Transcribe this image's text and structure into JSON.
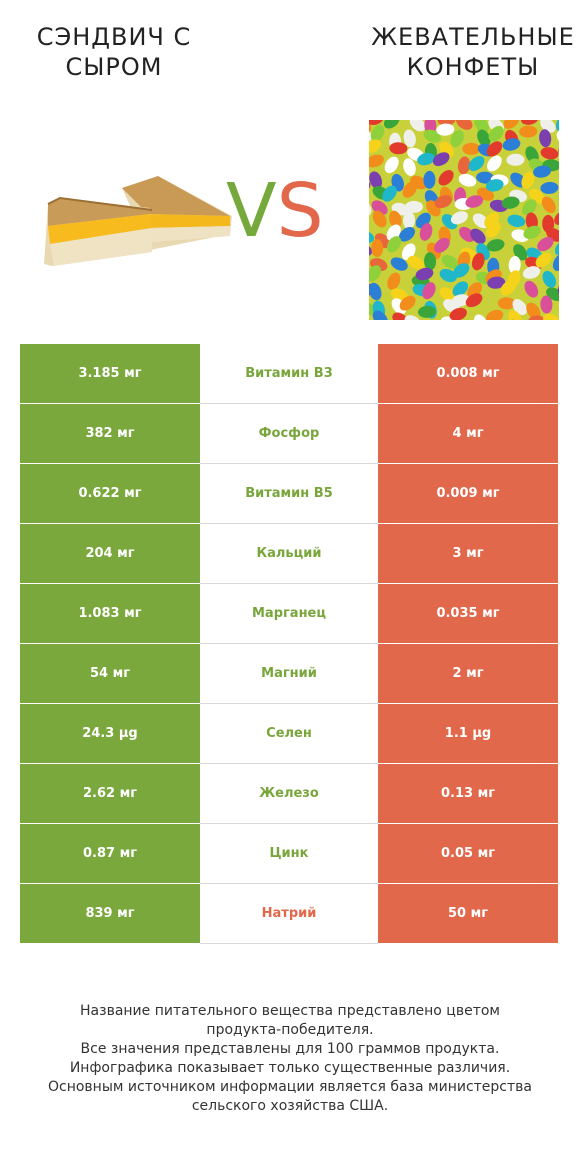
{
  "header": {
    "left_title_line1": "СЭНДВИЧ С",
    "left_title_line2": "СЫРОМ",
    "right_title_line1": "ЖЕВАТЕЛЬНЫЕ",
    "right_title_line2": "КОНФЕТЫ",
    "vs_v": "V",
    "vs_s": "S"
  },
  "colors": {
    "left_winner": "#7aa83d",
    "right_winner": "#e2684b"
  },
  "rows": [
    {
      "left": "3.185 мг",
      "nutrient": "Витамин B3",
      "right": "0.008 мг",
      "winner": "left"
    },
    {
      "left": "382 мг",
      "nutrient": "Фосфор",
      "right": "4 мг",
      "winner": "left"
    },
    {
      "left": "0.622 мг",
      "nutrient": "Витамин B5",
      "right": "0.009 мг",
      "winner": "left"
    },
    {
      "left": "204 мг",
      "nutrient": "Кальций",
      "right": "3 мг",
      "winner": "left"
    },
    {
      "left": "1.083 мг",
      "nutrient": "Марганец",
      "right": "0.035 мг",
      "winner": "left"
    },
    {
      "left": "54 мг",
      "nutrient": "Магний",
      "right": "2 мг",
      "winner": "left"
    },
    {
      "left": "24.3 µg",
      "nutrient": "Селен",
      "right": "1.1 µg",
      "winner": "left"
    },
    {
      "left": "2.62 мг",
      "nutrient": "Железо",
      "right": "0.13 мг",
      "winner": "left"
    },
    {
      "left": "0.87 мг",
      "nutrient": "Цинк",
      "right": "0.05 мг",
      "winner": "left"
    },
    {
      "left": "839 мг",
      "nutrient": "Натрий",
      "right": "50 мг",
      "winner": "right"
    }
  ],
  "footnote": {
    "line1": "Название питательного вещества представлено цветом",
    "line2": "продукта-победителя.",
    "line3": "Все значения представлены для 100 граммов продукта.",
    "line4": "Инфографика показывает только существенные различия.",
    "line5": "Основным источником информации является база министерства",
    "line6": "сельского хозяйства США."
  }
}
